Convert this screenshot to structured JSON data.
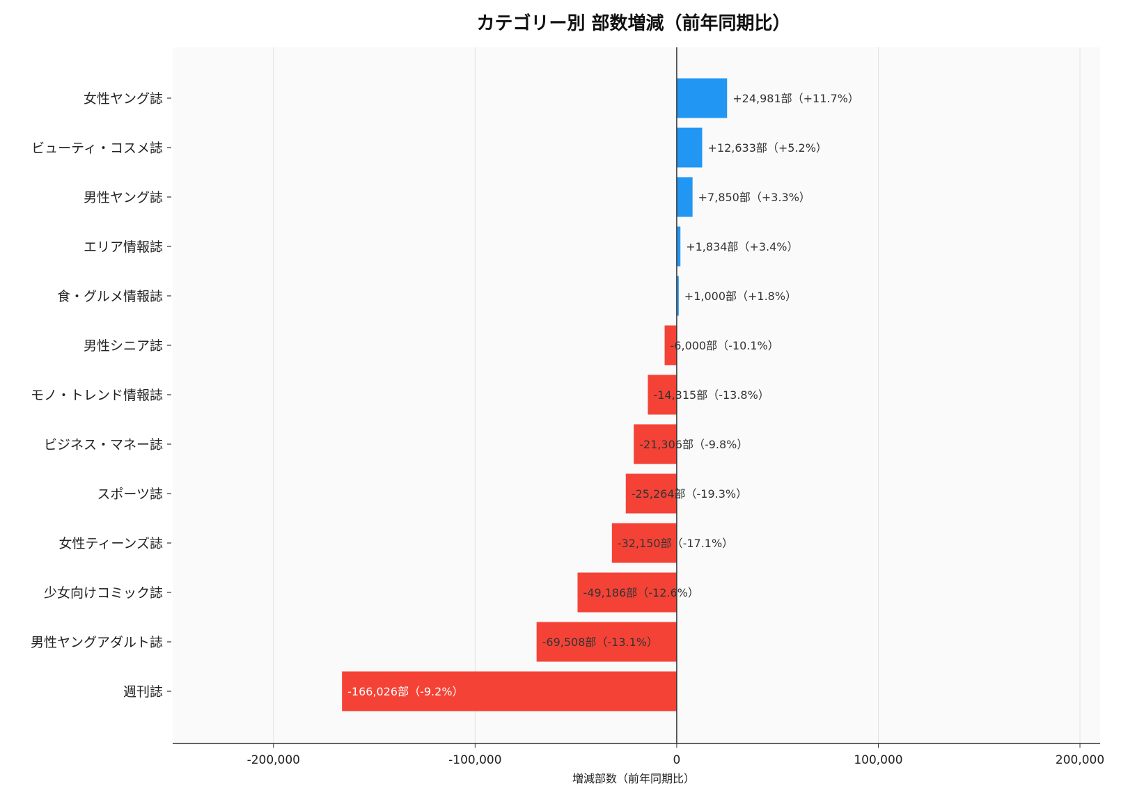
{
  "chart_data": {
    "type": "bar",
    "orientation": "horizontal",
    "title": "カテゴリー別 部数増減（前年同期比）",
    "xlabel": "増減部数（前年同期比）",
    "ylabel": "",
    "xlim": [
      -250000,
      210000
    ],
    "xticks": [
      -200000,
      -100000,
      0,
      100000,
      200000
    ],
    "xtick_labels": [
      "-200,000",
      "-100,000",
      "0",
      "100,000",
      "200,000"
    ],
    "grid": "vertical",
    "colors": {
      "positive": "#2196F3",
      "negative": "#F44336",
      "plot_bg": "#FAFAFA",
      "grid": "#E2E2E2"
    },
    "categories": [
      "女性ヤング誌",
      "ビューティ・コスメ誌",
      "男性ヤング誌",
      "エリア情報誌",
      "食・グルメ情報誌",
      "男性シニア誌",
      "モノ・トレンド情報誌",
      "ビジネス・マネー誌",
      "スポーツ誌",
      "女性ティーンズ誌",
      "少女向けコミック誌",
      "男性ヤングアダルト誌",
      "週刊誌"
    ],
    "values": [
      24981,
      12633,
      7850,
      1834,
      1000,
      -6000,
      -14315,
      -21306,
      -25264,
      -32150,
      -49186,
      -69508,
      -166026
    ],
    "data_labels": [
      "+24,981部（+11.7%）",
      "+12,633部（+5.2%）",
      "+7,850部（+3.3%）",
      "+1,834部（+3.4%）",
      "+1,000部（+1.8%）",
      "-6,000部（-10.1%）",
      "-14,315部（-13.8%）",
      "-21,306部（-9.8%）",
      "-25,264部（-19.3%）",
      "-32,150部（-17.1%）",
      "-49,186部（-12.6%）",
      "-69,508部（-13.1%）",
      "-166,026部（-9.2%）"
    ]
  }
}
